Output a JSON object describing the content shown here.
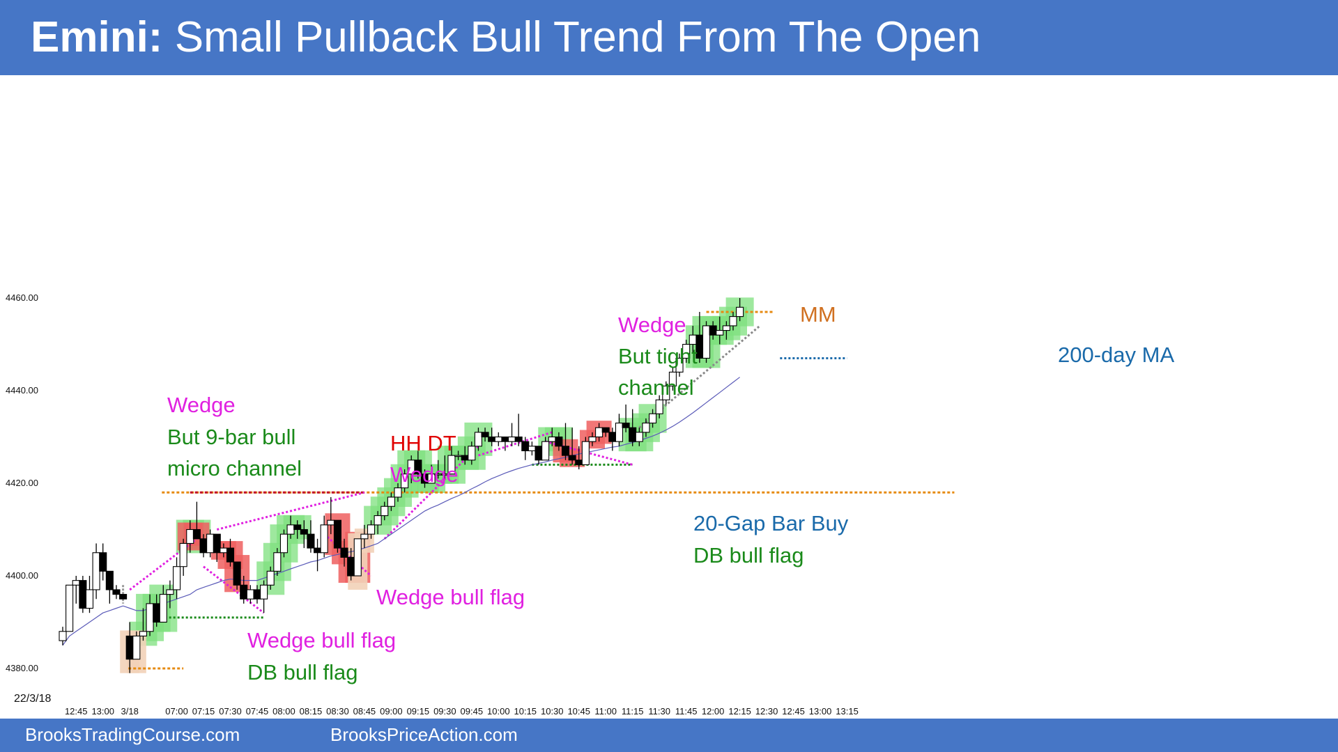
{
  "header": {
    "title_bold": "Emini:",
    "title_rest": "Small Pullback Bull Trend From The Open"
  },
  "footer": {
    "left_link": "BrooksTradingCourse.com",
    "right_link": "BrooksPriceAction.com"
  },
  "colors": {
    "header_bg": "#4676c6",
    "bull_bar_bg": "#7ee07e",
    "bear_bar_bg": "#ee5f5f",
    "entry_bg": "#f2d2b8",
    "ma_line": "#5a5ab8",
    "magenta": "#e020e0",
    "green_text": "#1a8a1a",
    "red_text": "#e00000",
    "orange": "#e68a10",
    "blue_text": "#1a6aaa"
  },
  "chart_data": {
    "type": "candlestick",
    "date_label": "22/3/18",
    "ylim": [
      4376,
      4470
    ],
    "y_ticks": [
      "4380.00",
      "4400.00",
      "4420.00",
      "4440.00",
      "4460.00"
    ],
    "x_ticks": [
      {
        "i": 2,
        "label": "12:45"
      },
      {
        "i": 6,
        "label": "13:00"
      },
      {
        "i": 10,
        "label": "3/18"
      },
      {
        "i": 17,
        "label": "07:00"
      },
      {
        "i": 21,
        "label": "07:15"
      },
      {
        "i": 25,
        "label": "07:30"
      },
      {
        "i": 29,
        "label": "07:45"
      },
      {
        "i": 33,
        "label": "08:00"
      },
      {
        "i": 37,
        "label": "08:15"
      },
      {
        "i": 41,
        "label": "08:30"
      },
      {
        "i": 45,
        "label": "08:45"
      },
      {
        "i": 49,
        "label": "09:00"
      },
      {
        "i": 53,
        "label": "09:15"
      },
      {
        "i": 57,
        "label": "09:30"
      },
      {
        "i": 61,
        "label": "09:45"
      },
      {
        "i": 65,
        "label": "10:00"
      },
      {
        "i": 69,
        "label": "10:15"
      },
      {
        "i": 73,
        "label": "10:30"
      },
      {
        "i": 77,
        "label": "10:45"
      },
      {
        "i": 81,
        "label": "11:00"
      },
      {
        "i": 85,
        "label": "11:15"
      },
      {
        "i": 89,
        "label": "11:30"
      },
      {
        "i": 93,
        "label": "11:45"
      },
      {
        "i": 97,
        "label": "12:00"
      },
      {
        "i": 101,
        "label": "12:15"
      },
      {
        "i": 105,
        "label": "12:30"
      },
      {
        "i": 109,
        "label": "12:45"
      },
      {
        "i": 113,
        "label": "13:00"
      },
      {
        "i": 117,
        "label": "13:15"
      }
    ],
    "candles": [
      [
        4386,
        4389,
        4385,
        4388
      ],
      [
        4388,
        4398,
        4388,
        4398
      ],
      [
        4398,
        4400,
        4394,
        4399
      ],
      [
        4399,
        4400,
        4392,
        4393
      ],
      [
        4393,
        4400,
        4392,
        4397
      ],
      [
        4397,
        4407,
        4395,
        4405
      ],
      [
        4405,
        4407,
        4399,
        4401
      ],
      [
        4401,
        4401,
        4394,
        4397
      ],
      [
        4397,
        4398,
        4395,
        4396
      ],
      [
        4396,
        4396,
        4395,
        4395
      ],
      [
        4387,
        4390,
        4379,
        4382
      ],
      [
        4382,
        4388,
        4382,
        4387
      ],
      [
        4387,
        4393,
        4386,
        4388
      ],
      [
        4388,
        4396,
        4387,
        4394
      ],
      [
        4394,
        4396,
        4389,
        4390
      ],
      [
        4390,
        4398,
        4390,
        4396
      ],
      [
        4396,
        4399,
        4393,
        4397
      ],
      [
        4397,
        4404,
        4395,
        4402
      ],
      [
        4402,
        4408,
        4400,
        4407
      ],
      [
        4407,
        4412,
        4405,
        4410
      ],
      [
        4410,
        4416,
        4408,
        4408
      ],
      [
        4408,
        4409,
        4404,
        4405
      ],
      [
        4405,
        4410,
        4404,
        4409
      ],
      [
        4409,
        4409,
        4403,
        4405
      ],
      [
        4405,
        4407,
        4404,
        4406
      ],
      [
        4406,
        4408,
        4402,
        4403
      ],
      [
        4403,
        4403,
        4397,
        4398
      ],
      [
        4398,
        4400,
        4394,
        4395
      ],
      [
        4395,
        4398,
        4394,
        4397
      ],
      [
        4397,
        4398,
        4394,
        4395
      ],
      [
        4395,
        4399,
        4392,
        4398
      ],
      [
        4398,
        4402,
        4397,
        4401
      ],
      [
        4401,
        4406,
        4400,
        4405
      ],
      [
        4405,
        4410,
        4404,
        4409
      ],
      [
        4409,
        4413,
        4408,
        4411
      ],
      [
        4411,
        4412,
        4408,
        4410
      ],
      [
        4410,
        4412,
        4406,
        4409
      ],
      [
        4409,
        4412,
        4405,
        4406
      ],
      [
        4406,
        4408,
        4401,
        4405
      ],
      [
        4405,
        4413,
        4404,
        4411
      ],
      [
        4411,
        4417,
        4409,
        4412
      ],
      [
        4412,
        4412,
        4405,
        4406
      ],
      [
        4406,
        4408,
        4402,
        4404
      ],
      [
        4404,
        4406,
        4399,
        4400
      ],
      [
        4400,
        4408,
        4400,
        4408
      ],
      [
        4408,
        4411,
        4406,
        4409
      ],
      [
        4409,
        4412,
        4408,
        4411
      ],
      [
        4411,
        4414,
        4409,
        4413
      ],
      [
        4413,
        4416,
        4412,
        4415
      ],
      [
        4415,
        4418,
        4414,
        4417
      ],
      [
        4417,
        4420,
        4416,
        4419
      ],
      [
        4419,
        4423,
        4418,
        4422
      ],
      [
        4422,
        4426,
        4420,
        4425
      ],
      [
        4425,
        4427,
        4421,
        4422
      ],
      [
        4422,
        4423,
        4419,
        4420
      ],
      [
        4420,
        4424,
        4420,
        4422
      ],
      [
        4422,
        4425,
        4421,
        4422
      ],
      [
        4422,
        4426,
        4421,
        4422
      ],
      [
        4422,
        4428,
        4422,
        4426
      ],
      [
        4426,
        4427,
        4425,
        4426
      ],
      [
        4426,
        4428,
        4424,
        4425
      ],
      [
        4425,
        4429,
        4424,
        4428
      ],
      [
        4428,
        4432,
        4427,
        4431
      ],
      [
        4431,
        4432,
        4429,
        4430
      ],
      [
        4430,
        4432,
        4428,
        4429
      ],
      [
        4429,
        4431,
        4428,
        4430
      ],
      [
        4430,
        4430,
        4427,
        4429
      ],
      [
        4429,
        4433,
        4428,
        4430
      ],
      [
        4430,
        4435,
        4428,
        4429
      ],
      [
        4429,
        4430,
        4425,
        4427
      ],
      [
        4427,
        4429,
        4426,
        4428
      ],
      [
        4428,
        4428,
        4424,
        4425
      ],
      [
        4425,
        4430,
        4425,
        4429
      ],
      [
        4429,
        4432,
        4428,
        4430
      ],
      [
        4430,
        4431,
        4427,
        4428
      ],
      [
        4428,
        4433,
        4425,
        4426
      ],
      [
        4426,
        4432,
        4424,
        4425
      ],
      [
        4425,
        4428,
        4423,
        4424
      ],
      [
        4424,
        4430,
        4424,
        4429
      ],
      [
        4429,
        4431,
        4428,
        4430
      ],
      [
        4430,
        4433,
        4429,
        4432
      ],
      [
        4432,
        4432,
        4430,
        4431
      ],
      [
        4431,
        4432,
        4427,
        4429
      ],
      [
        4429,
        4435,
        4428,
        4433
      ],
      [
        4433,
        4437,
        4431,
        4432
      ],
      [
        4432,
        4436,
        4428,
        4429
      ],
      [
        4429,
        4432,
        4428,
        4431
      ],
      [
        4431,
        4434,
        4430,
        4433
      ],
      [
        4433,
        4436,
        4432,
        4435
      ],
      [
        4435,
        4439,
        4434,
        4438
      ],
      [
        4438,
        4442,
        4437,
        4441
      ],
      [
        4441,
        4445,
        4440,
        4444
      ],
      [
        4444,
        4448,
        4443,
        4447
      ],
      [
        4447,
        4451,
        4446,
        4450
      ],
      [
        4450,
        4454,
        4448,
        4452
      ],
      [
        4452,
        4457,
        4446,
        4447
      ],
      [
        4447,
        4455,
        4446,
        4454
      ],
      [
        4454,
        4455,
        4451,
        4452
      ],
      [
        4452,
        4456,
        4450,
        4453
      ],
      [
        4453,
        4455,
        4451,
        4454
      ],
      [
        4454,
        4457,
        4453,
        4456
      ],
      [
        4456,
        4460,
        4455,
        4458
      ]
    ],
    "ma_200": [
      4385,
      4387,
      4388,
      4389,
      4390,
      4391,
      4392,
      4392.5,
      4393,
      4393.5,
      4393,
      4392.5,
      4392.5,
      4393,
      4393.5,
      4394,
      4394.5,
      4395,
      4395.5,
      4396,
      4397,
      4397.5,
      4398,
      4398.5,
      4399,
      4399.3,
      4399.2,
      4399,
      4399,
      4399,
      4399.5,
      4400,
      4400.5,
      4401,
      4401.5,
      4402,
      4402.5,
      4403,
      4403.3,
      4403.8,
      4404.3,
      4404.6,
      4405,
      4405.2,
      4405.6,
      4406,
      4406.5,
      4407,
      4408,
      4409,
      4410,
      4411,
      4412,
      4413,
      4414,
      4414.7,
      4415.3,
      4416,
      4416.7,
      4417.3,
      4418,
      4418.8,
      4419.5,
      4420.3,
      4421,
      4421.6,
      4422.2,
      4422.7,
      4423.2,
      4423.6,
      4424,
      4424.3,
      4424.6,
      4425,
      4425.3,
      4425.6,
      4426,
      4426.3,
      4426.6,
      4426.9,
      4427.2,
      4427.5,
      4427.8,
      4428,
      4428.4,
      4428.8,
      4429.2,
      4429.7,
      4430.2,
      4430.8,
      4431.5,
      4432.3,
      4433.2,
      4434.2,
      4435.2,
      4436.3,
      4437.4,
      4438.5,
      4439.6,
      4440.7,
      4441.8,
      4442.9,
      4444,
      4445,
      4446,
      4447
    ]
  },
  "annotations": {
    "wedge_a": "Wedge",
    "bull_micro_1": "But 9-bar bull",
    "bull_micro_2": "micro channel",
    "hhdt": "HH DT",
    "wedge_b": "Wedge",
    "wedge_bull_flag_1": "Wedge bull flag",
    "db_bull_flag_1": "DB bull flag",
    "wedge_bull_flag_2": "Wedge bull flag",
    "gap_bar_buy": "20-Gap Bar Buy",
    "db_bull_flag_2": "DB bull flag",
    "wedge_c": "Wedge",
    "tight_1": "But tight",
    "tight_2": "channel",
    "mm": "MM",
    "ma_label": "200-day MA"
  }
}
